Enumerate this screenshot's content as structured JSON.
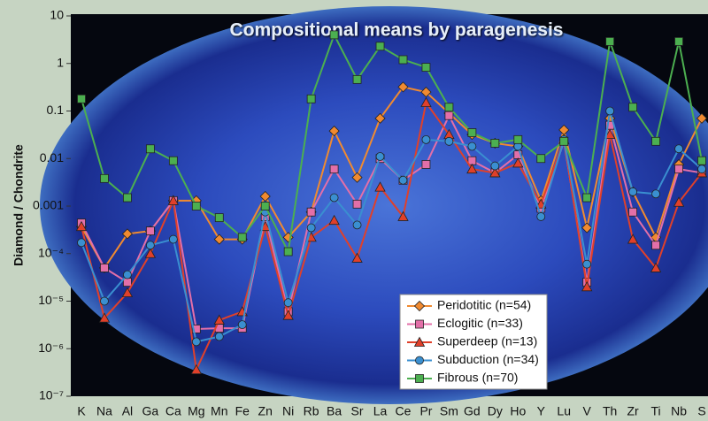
{
  "chart_data": {
    "type": "line",
    "title": "Compositional means by paragenesis",
    "y_label": "Diamond / Chondrite",
    "log_y": true,
    "legend": "lower right",
    "categories": [
      "K",
      "Na",
      "Al",
      "Ga",
      "Ca",
      "Mg",
      "Mn",
      "Fe",
      "Zn",
      "Ni",
      "Rb",
      "Ba",
      "Sr",
      "La",
      "Ce",
      "Pr",
      "Sm",
      "Gd",
      "Dy",
      "Ho",
      "Y",
      "Lu",
      "V",
      "Th",
      "Zr",
      "Ti",
      "Nb",
      "S"
    ],
    "ylim": [
      1e-07,
      10
    ],
    "yticks": [
      10,
      1,
      0.1,
      0.01,
      0.001,
      {
        "value": 0.0001,
        "label": "10⁻⁴"
      },
      {
        "value": 1e-05,
        "label": "10⁻⁵"
      },
      {
        "value": 1e-06,
        "label": "10⁻⁶"
      },
      {
        "value": 1e-07,
        "label": "10⁻⁷"
      }
    ],
    "series": [
      {
        "name": "Peridotitic (n=54)",
        "color": "#f08a30",
        "marker": "diamond",
        "values": [
          0.00037,
          5e-05,
          0.00026,
          0.0003,
          0.0013,
          0.0013,
          0.0002,
          0.0002,
          0.0016,
          0.00022,
          0.00075,
          0.038,
          0.004,
          0.07,
          0.32,
          0.25,
          0.09,
          0.032,
          0.021,
          0.018,
          0.0013,
          0.04,
          0.00035,
          0.07,
          0.002,
          0.00022,
          0.0075,
          0.07
        ]
      },
      {
        "name": "Eclogitic (n=33)",
        "color": "#e36fa8",
        "marker": "square",
        "values": [
          0.00044,
          5e-05,
          2.5e-05,
          0.0003,
          0.0013,
          2.6e-06,
          2.7e-06,
          2.7e-06,
          0.0006,
          6e-06,
          0.00075,
          0.006,
          0.0011,
          0.01,
          0.0035,
          0.0075,
          0.08,
          0.009,
          0.005,
          0.012,
          0.0009,
          0.023,
          2.5e-05,
          0.05,
          0.00075,
          0.00015,
          0.006,
          0.005
        ]
      },
      {
        "name": "Superdeep (n=13)",
        "color": "#e0402a",
        "marker": "triangle",
        "values": [
          0.00037,
          4.4e-06,
          1.5e-05,
          0.0001,
          0.0013,
          3.6e-07,
          4e-06,
          6e-06,
          0.00037,
          5e-06,
          0.00022,
          0.0005,
          8e-05,
          0.0025,
          0.0006,
          0.15,
          0.032,
          0.006,
          0.005,
          0.008,
          0.0011,
          0.025,
          2e-05,
          0.032,
          0.0002,
          5e-05,
          0.0012,
          0.005
        ]
      },
      {
        "name": "Subduction (n=34)",
        "color": "#3a8fd0",
        "marker": "circle",
        "values": [
          0.00017,
          1e-05,
          3.6e-05,
          0.00015,
          0.0002,
          1.4e-06,
          1.8e-06,
          3.2e-06,
          0.00075,
          9.3e-06,
          0.00035,
          0.0015,
          0.0004,
          0.011,
          0.0035,
          0.025,
          0.023,
          0.018,
          0.007,
          0.018,
          0.0006,
          0.025,
          6e-05,
          0.1,
          0.002,
          0.0018,
          0.016,
          0.006
        ]
      },
      {
        "name": "Fibrous (n=70)",
        "color": "#4caf50",
        "marker": "square",
        "values": [
          0.18,
          0.0038,
          0.0015,
          0.016,
          0.009,
          0.001,
          0.00057,
          0.00022,
          0.001,
          0.00011,
          0.18,
          4,
          0.46,
          2.3,
          1.2,
          0.83,
          0.12,
          0.035,
          0.021,
          0.025,
          0.01,
          0.023,
          0.0015,
          2.9,
          0.12,
          0.023,
          2.9,
          0.009
        ]
      }
    ]
  }
}
